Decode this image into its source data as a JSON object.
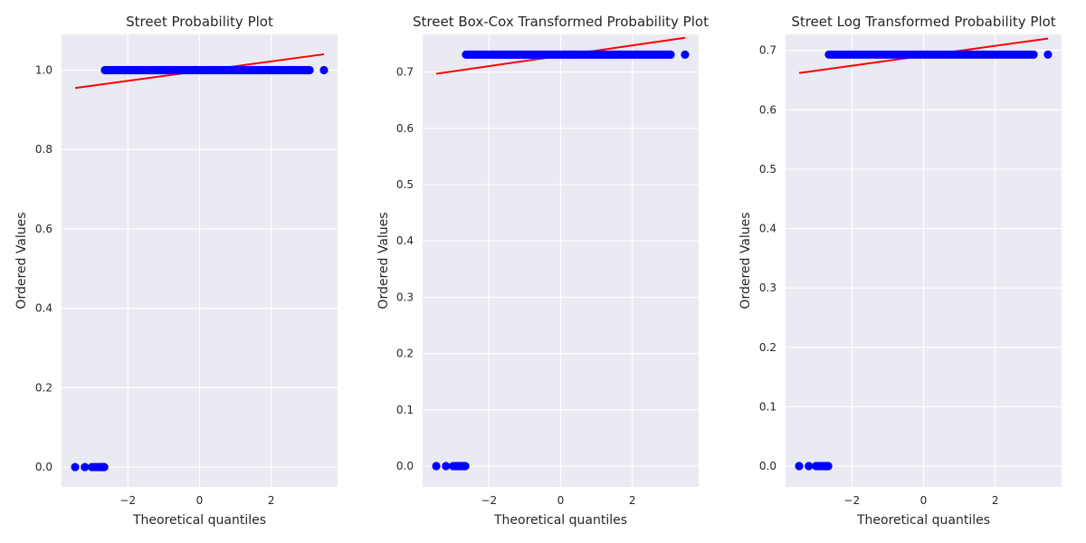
{
  "chart_data": [
    {
      "type": "scatter",
      "title": "Street Probability Plot",
      "xlabel": "Theoretical quantiles",
      "ylabel": "Ordered Values",
      "xlim": [
        -3.85,
        3.85
      ],
      "ylim": [
        -0.05,
        1.09
      ],
      "xticks": [
        -2,
        0,
        2
      ],
      "xtick_labels": [
        "−2",
        "0",
        "2"
      ],
      "yticks": [
        0.0,
        0.2,
        0.4,
        0.6,
        0.8,
        1.0
      ],
      "ytick_labels": [
        "0.0",
        "0.2",
        "0.4",
        "0.6",
        "0.8",
        "1.0"
      ],
      "grid": true,
      "points_low": {
        "y": 0.0,
        "x": [
          -3.47,
          -3.2,
          -3.0,
          -2.92,
          -2.85,
          -2.8,
          -2.76,
          -2.72,
          -2.69,
          -2.66
        ]
      },
      "points_high": {
        "y": 1.0,
        "x_start": -2.64,
        "x_end": 3.47,
        "count": 130,
        "max_x": 3.47
      },
      "fit_line": {
        "x": [
          -3.47,
          3.47
        ],
        "y": [
          0.955,
          1.04
        ]
      },
      "colors": {
        "points": "#0000ff",
        "line": "#ff0000"
      }
    },
    {
      "type": "scatter",
      "title": "Street Box-Cox Transformed Probability Plot",
      "xlabel": "Theoretical quantiles",
      "ylabel": "Ordered Values",
      "xlim": [
        -3.85,
        3.85
      ],
      "ylim": [
        -0.037,
        0.767
      ],
      "xticks": [
        -2,
        0,
        2
      ],
      "xtick_labels": [
        "−2",
        "0",
        "2"
      ],
      "yticks": [
        0.0,
        0.1,
        0.2,
        0.3,
        0.4,
        0.5,
        0.6,
        0.7
      ],
      "ytick_labels": [
        "0.0",
        "0.1",
        "0.2",
        "0.3",
        "0.4",
        "0.5",
        "0.6",
        "0.7"
      ],
      "grid": true,
      "points_low": {
        "y": 0.0,
        "x": [
          -3.47,
          -3.2,
          -3.0,
          -2.92,
          -2.85,
          -2.8,
          -2.76,
          -2.72,
          -2.69,
          -2.66
        ]
      },
      "points_high": {
        "y": 0.731,
        "x_start": -2.64,
        "x_end": 3.47,
        "count": 130,
        "max_x": 3.47
      },
      "fit_line": {
        "x": [
          -3.47,
          3.47
        ],
        "y": [
          0.697,
          0.761
        ]
      },
      "colors": {
        "points": "#0000ff",
        "line": "#ff0000"
      }
    },
    {
      "type": "scatter",
      "title": "Street Log Transformed Probability Plot",
      "xlabel": "Theoretical quantiles",
      "ylabel": "Ordered Values",
      "xlim": [
        -3.85,
        3.85
      ],
      "ylim": [
        -0.035,
        0.727
      ],
      "xticks": [
        -2,
        0,
        2
      ],
      "xtick_labels": [
        "−2",
        "0",
        "2"
      ],
      "yticks": [
        0.0,
        0.1,
        0.2,
        0.3,
        0.4,
        0.5,
        0.6,
        0.7
      ],
      "ytick_labels": [
        "0.0",
        "0.1",
        "0.2",
        "0.3",
        "0.4",
        "0.5",
        "0.6",
        "0.7"
      ],
      "grid": true,
      "points_low": {
        "y": 0.0,
        "x": [
          -3.47,
          -3.2,
          -3.0,
          -2.92,
          -2.85,
          -2.8,
          -2.76,
          -2.72,
          -2.69,
          -2.66
        ]
      },
      "points_high": {
        "y": 0.693,
        "x_start": -2.64,
        "x_end": 3.47,
        "count": 130,
        "max_x": 3.47
      },
      "fit_line": {
        "x": [
          -3.47,
          3.47
        ],
        "y": [
          0.662,
          0.72
        ]
      },
      "colors": {
        "points": "#0000ff",
        "line": "#ff0000"
      }
    }
  ]
}
